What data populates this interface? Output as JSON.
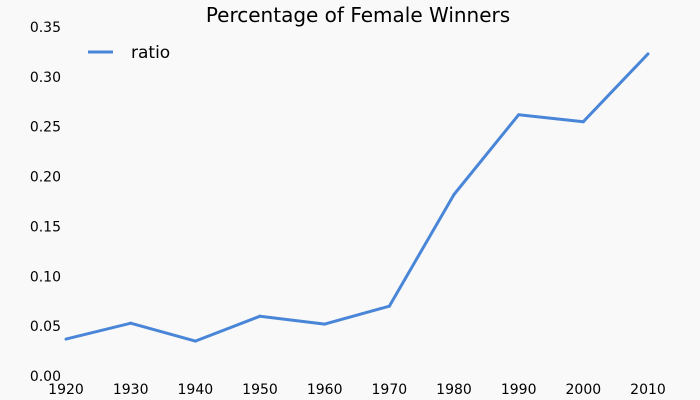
{
  "chart_data": {
    "type": "line",
    "title": "Percentage of Female Winners",
    "xlabel": "",
    "ylabel": "",
    "x": [
      1920,
      1930,
      1940,
      1950,
      1960,
      1970,
      1980,
      1990,
      2000,
      2010
    ],
    "xticks": [
      "1920",
      "1930",
      "1940",
      "1950",
      "1960",
      "1970",
      "1980",
      "1990",
      "2000",
      "2010"
    ],
    "yticks": [
      "0.00",
      "0.05",
      "0.10",
      "0.15",
      "0.20",
      "0.25",
      "0.30",
      "0.35"
    ],
    "xlim": [
      1920,
      2010
    ],
    "ylim": [
      0,
      0.35
    ],
    "grid": false,
    "legend_position": "top-left",
    "series": [
      {
        "name": "ratio",
        "color": "#4a86d8",
        "values": [
          0.037,
          0.053,
          0.035,
          0.06,
          0.052,
          0.07,
          0.182,
          0.262,
          0.255,
          0.323
        ]
      }
    ],
    "background": "#f9f9f9"
  }
}
